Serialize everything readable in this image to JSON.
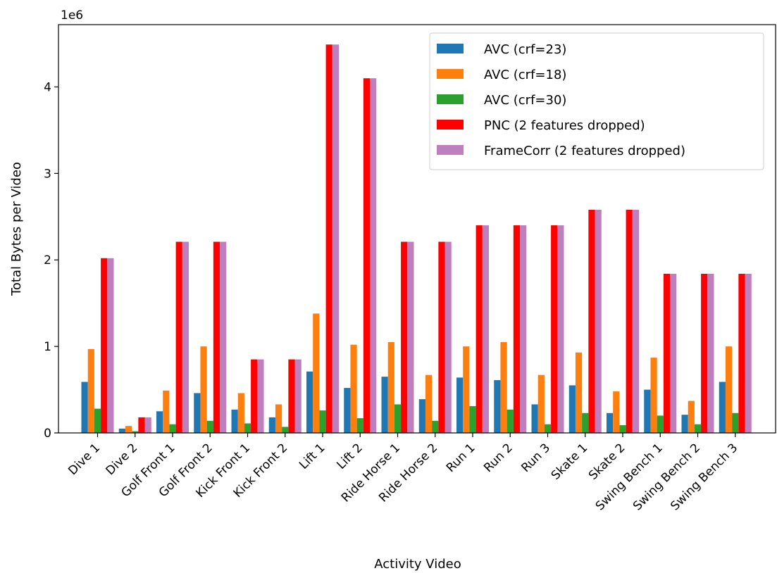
{
  "chart_data": {
    "type": "bar",
    "title": "",
    "xlabel": "Activity Video",
    "ylabel": "Total Bytes per Video",
    "y_scale_label": "1e6",
    "y_multiplier": 1000000,
    "ylim": [
      0,
      4.72
    ],
    "yticks": [
      0,
      1,
      2,
      3,
      4
    ],
    "ytick_labels": [
      "0",
      "1",
      "2",
      "3",
      "4"
    ],
    "grid": false,
    "legend_position": "top-right",
    "categories": [
      "Dive 1",
      "Dive 2",
      "Golf Front 1",
      "Golf Front 2",
      "Kick Front 1",
      "Kick Front 2",
      "Lift 1",
      "Lift 2",
      "Ride Horse 1",
      "Ride Horse 2",
      "Run 1",
      "Run 2",
      "Run 3",
      "Skate 1",
      "Skate 2",
      "Swing Bench 1",
      "Swing Bench 2",
      "Swing Bench 3"
    ],
    "series": [
      {
        "name": "AVC (crf=23)",
        "color": "#1f77b4",
        "values": [
          0.59,
          0.05,
          0.25,
          0.46,
          0.27,
          0.18,
          0.71,
          0.52,
          0.65,
          0.39,
          0.64,
          0.61,
          0.33,
          0.55,
          0.23,
          0.5,
          0.21,
          0.59
        ]
      },
      {
        "name": "AVC (crf=18)",
        "color": "#ff7f0e",
        "values": [
          0.97,
          0.08,
          0.49,
          1.0,
          0.46,
          0.33,
          1.38,
          1.02,
          1.05,
          0.67,
          1.0,
          1.05,
          0.67,
          0.93,
          0.48,
          0.87,
          0.37,
          1.0
        ]
      },
      {
        "name": "AVC (crf=30)",
        "color": "#2ca02c",
        "values": [
          0.28,
          0.02,
          0.1,
          0.14,
          0.11,
          0.07,
          0.26,
          0.17,
          0.33,
          0.14,
          0.31,
          0.27,
          0.1,
          0.23,
          0.09,
          0.2,
          0.1,
          0.23
        ]
      },
      {
        "name": "PNC (2 features dropped)",
        "color": "#ff0000",
        "values": [
          2.02,
          0.18,
          2.21,
          2.21,
          0.85,
          0.85,
          4.49,
          4.1,
          2.21,
          2.21,
          2.4,
          2.4,
          2.4,
          2.58,
          2.58,
          1.84,
          1.84,
          1.84
        ]
      },
      {
        "name": "FrameCorr (2 features dropped)",
        "color": "#bf7fbf",
        "values": [
          2.02,
          0.18,
          2.21,
          2.21,
          0.85,
          0.85,
          4.49,
          4.1,
          2.21,
          2.21,
          2.4,
          2.4,
          2.4,
          2.58,
          2.58,
          1.84,
          1.84,
          1.84
        ]
      }
    ]
  }
}
